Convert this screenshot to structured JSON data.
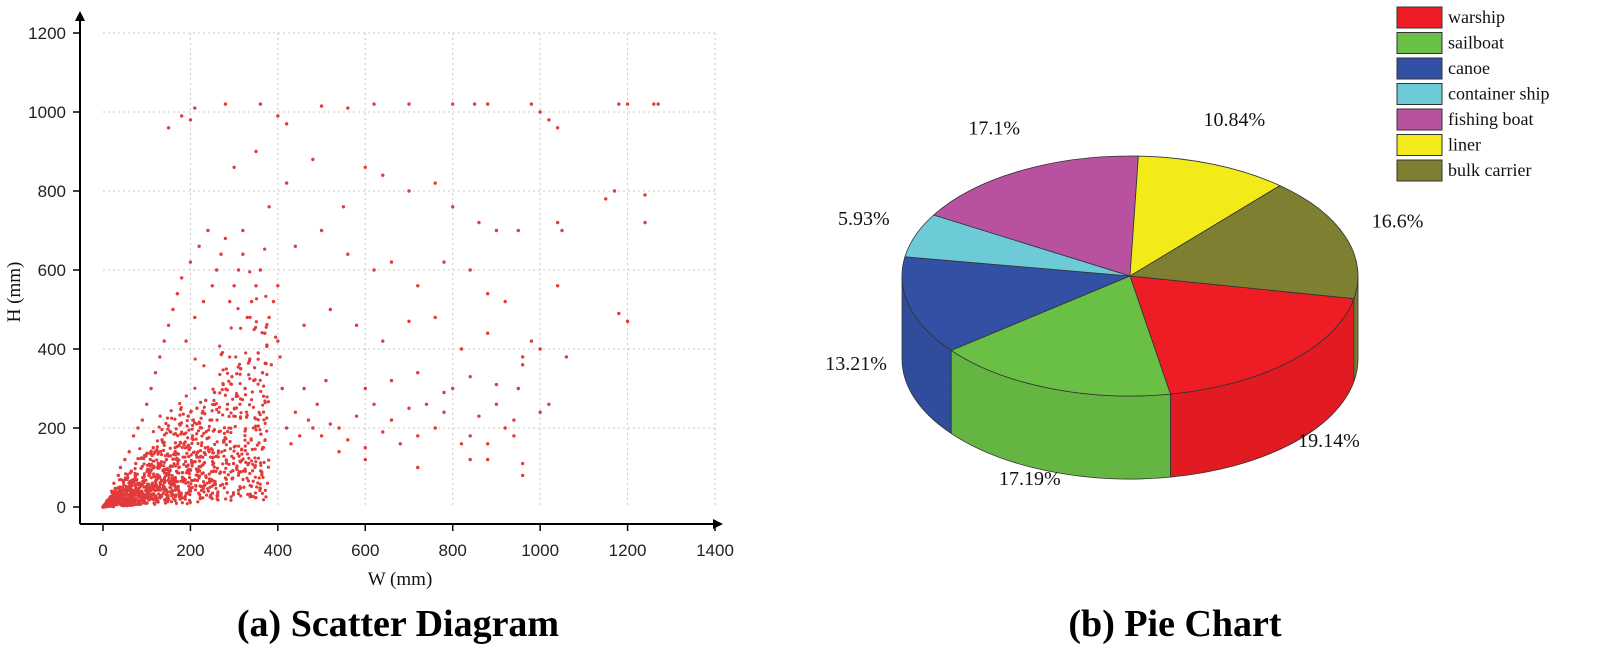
{
  "figure": {
    "caption_a": "(a) Scatter Diagram",
    "caption_b": "(b) Pie Chart"
  },
  "chart_data": [
    {
      "type": "scatter",
      "xlabel": "W (mm)",
      "ylabel": "H (mm)",
      "xlim": [
        0,
        1400
      ],
      "ylim": [
        0,
        1200
      ],
      "xticks": [
        0,
        200,
        400,
        600,
        800,
        1000,
        1200,
        1400
      ],
      "yticks": [
        0,
        200,
        400,
        600,
        800,
        1000,
        1200
      ],
      "grid": true,
      "marker_color": "#e23b3b",
      "points": [
        [
          10,
          5
        ],
        [
          15,
          20
        ],
        [
          20,
          40
        ],
        [
          25,
          60
        ],
        [
          30,
          30
        ],
        [
          35,
          80
        ],
        [
          40,
          100
        ],
        [
          45,
          50
        ],
        [
          50,
          120
        ],
        [
          55,
          70
        ],
        [
          60,
          140
        ],
        [
          65,
          90
        ],
        [
          70,
          180
        ],
        [
          75,
          110
        ],
        [
          80,
          200
        ],
        [
          85,
          60
        ],
        [
          90,
          220
        ],
        [
          95,
          130
        ],
        [
          100,
          260
        ],
        [
          105,
          80
        ],
        [
          110,
          300
        ],
        [
          115,
          150
        ],
        [
          120,
          340
        ],
        [
          125,
          100
        ],
        [
          130,
          380
        ],
        [
          135,
          170
        ],
        [
          140,
          420
        ],
        [
          145,
          120
        ],
        [
          150,
          460
        ],
        [
          155,
          190
        ],
        [
          160,
          500
        ],
        [
          165,
          140
        ],
        [
          170,
          540
        ],
        [
          175,
          210
        ],
        [
          180,
          580
        ],
        [
          185,
          160
        ],
        [
          190,
          420
        ],
        [
          195,
          230
        ],
        [
          200,
          620
        ],
        [
          205,
          180
        ],
        [
          210,
          480
        ],
        [
          215,
          250
        ],
        [
          220,
          660
        ],
        [
          225,
          200
        ],
        [
          230,
          520
        ],
        [
          235,
          270
        ],
        [
          240,
          700
        ],
        [
          245,
          220
        ],
        [
          250,
          560
        ],
        [
          255,
          290
        ],
        [
          260,
          600
        ],
        [
          265,
          240
        ],
        [
          270,
          640
        ],
        [
          275,
          310
        ],
        [
          280,
          680
        ],
        [
          285,
          260
        ],
        [
          290,
          520
        ],
        [
          295,
          330
        ],
        [
          300,
          560
        ],
        [
          305,
          280
        ],
        [
          310,
          600
        ],
        [
          315,
          350
        ],
        [
          320,
          640
        ],
        [
          325,
          300
        ],
        [
          330,
          480
        ],
        [
          335,
          370
        ],
        [
          340,
          520
        ],
        [
          345,
          320
        ],
        [
          350,
          560
        ],
        [
          355,
          390
        ],
        [
          360,
          600
        ],
        [
          365,
          340
        ],
        [
          370,
          440
        ],
        [
          375,
          410
        ],
        [
          380,
          480
        ],
        [
          385,
          360
        ],
        [
          390,
          520
        ],
        [
          395,
          430
        ],
        [
          400,
          560
        ],
        [
          405,
          380
        ],
        [
          410,
          300
        ],
        [
          420,
          200
        ],
        [
          430,
          160
        ],
        [
          440,
          240
        ],
        [
          450,
          180
        ],
        [
          460,
          300
        ],
        [
          470,
          220
        ],
        [
          480,
          200
        ],
        [
          490,
          260
        ],
        [
          500,
          180
        ],
        [
          510,
          320
        ],
        [
          520,
          210
        ],
        [
          540,
          200
        ],
        [
          560,
          170
        ],
        [
          580,
          230
        ],
        [
          600,
          150
        ],
        [
          620,
          260
        ],
        [
          640,
          190
        ],
        [
          660,
          220
        ],
        [
          680,
          160
        ],
        [
          700,
          250
        ],
        [
          720,
          180
        ],
        [
          740,
          260
        ],
        [
          760,
          200
        ],
        [
          780,
          240
        ],
        [
          800,
          300
        ],
        [
          820,
          160
        ],
        [
          840,
          180
        ],
        [
          860,
          230
        ],
        [
          880,
          120
        ],
        [
          900,
          260
        ],
        [
          920,
          200
        ],
        [
          940,
          220
        ],
        [
          950,
          300
        ],
        [
          960,
          380
        ],
        [
          980,
          420
        ],
        [
          1000,
          240
        ],
        [
          1020,
          260
        ],
        [
          150,
          960
        ],
        [
          180,
          990
        ],
        [
          200,
          980
        ],
        [
          210,
          1010
        ],
        [
          280,
          1020
        ],
        [
          360,
          1020
        ],
        [
          400,
          990
        ],
        [
          420,
          970
        ],
        [
          500,
          1015
        ],
        [
          560,
          1010
        ],
        [
          620,
          1020
        ],
        [
          700,
          1020
        ],
        [
          800,
          1020
        ],
        [
          850,
          1020
        ],
        [
          880,
          1020
        ],
        [
          980,
          1020
        ],
        [
          1000,
          1000
        ],
        [
          1020,
          980
        ],
        [
          1040,
          960
        ],
        [
          1180,
          1020
        ],
        [
          1200,
          1020
        ],
        [
          1260,
          1020
        ],
        [
          1270,
          1020
        ],
        [
          300,
          860
        ],
        [
          350,
          900
        ],
        [
          420,
          820
        ],
        [
          480,
          880
        ],
        [
          550,
          760
        ],
        [
          600,
          860
        ],
        [
          640,
          840
        ],
        [
          700,
          800
        ],
        [
          760,
          820
        ],
        [
          800,
          760
        ],
        [
          860,
          720
        ],
        [
          900,
          700
        ],
        [
          950,
          700
        ],
        [
          1040,
          720
        ],
        [
          1050,
          700
        ],
        [
          1150,
          780
        ],
        [
          1170,
          800
        ],
        [
          1240,
          790
        ],
        [
          1240,
          720
        ],
        [
          320,
          700
        ],
        [
          380,
          760
        ],
        [
          440,
          660
        ],
        [
          500,
          700
        ],
        [
          560,
          640
        ],
        [
          620,
          600
        ],
        [
          660,
          620
        ],
        [
          720,
          560
        ],
        [
          780,
          620
        ],
        [
          840,
          600
        ],
        [
          880,
          540
        ],
        [
          920,
          520
        ],
        [
          1040,
          560
        ],
        [
          1180,
          490
        ],
        [
          1200,
          470
        ],
        [
          400,
          420
        ],
        [
          460,
          460
        ],
        [
          520,
          500
        ],
        [
          580,
          460
        ],
        [
          640,
          420
        ],
        [
          700,
          470
        ],
        [
          760,
          480
        ],
        [
          820,
          400
        ],
        [
          880,
          440
        ],
        [
          960,
          360
        ],
        [
          1000,
          400
        ],
        [
          1060,
          380
        ],
        [
          600,
          300
        ],
        [
          660,
          320
        ],
        [
          720,
          340
        ],
        [
          780,
          290
        ],
        [
          840,
          330
        ],
        [
          900,
          310
        ],
        [
          940,
          180
        ],
        [
          960,
          110
        ],
        [
          960,
          80
        ],
        [
          880,
          160
        ],
        [
          840,
          120
        ],
        [
          720,
          100
        ],
        [
          600,
          120
        ],
        [
          540,
          140
        ]
      ]
    },
    {
      "type": "pie",
      "legend_position": "top-right",
      "categories": [
        "warship",
        "sailboat",
        "canoe",
        "container ship",
        "fishing boat",
        "liner",
        "bulk carrier"
      ],
      "values": [
        19.14,
        17.19,
        13.21,
        5.93,
        17.1,
        10.84,
        16.6
      ],
      "labels": [
        "19.14%",
        "17.19%",
        "13.21%",
        "5.93%",
        "17.1%",
        "10.84%",
        "16.6%"
      ],
      "colors": [
        "#ee1c24",
        "#6abf45",
        "#3351a4",
        "#6dcbd8",
        "#b8519f",
        "#f3ea1a",
        "#7f7f31"
      ]
    }
  ]
}
